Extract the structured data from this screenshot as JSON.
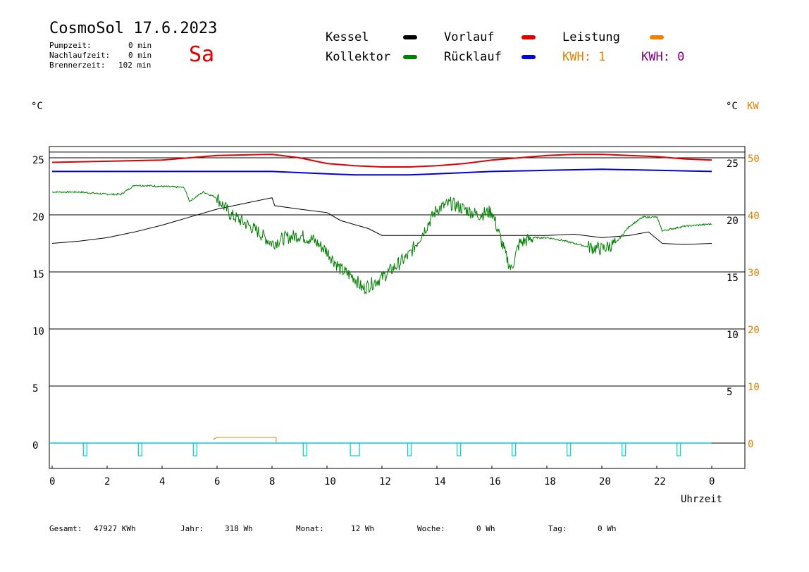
{
  "header": {
    "title": "CosmoSol 17.6.2023",
    "day": "Sa",
    "stats": [
      {
        "label": "Pumpzeit:",
        "value": "0 min"
      },
      {
        "label": "Nachlaufzeit:",
        "value": "0 min"
      },
      {
        "label": "Brennerzeit:",
        "value": "102 min"
      }
    ]
  },
  "legend": {
    "kessel": {
      "label": "Kessel",
      "color": "#000000"
    },
    "kollektor": {
      "label": "Kollektor",
      "color": "#008000"
    },
    "vorlauf": {
      "label": "Vorlauf",
      "color": "#e00000"
    },
    "ruecklauf": {
      "label": "Rücklauf",
      "color": "#0000e0"
    },
    "leistung": {
      "label": "Leistung",
      "color": "#f08000"
    },
    "kwh1": {
      "label": "KWH: 1",
      "color": "#e08000"
    },
    "kwh2": {
      "label": "KWH: 0",
      "color": "#800080"
    }
  },
  "axes": {
    "left_unit": "°C",
    "right_unit_c": "°C",
    "right_unit_kw": "KW",
    "xlabel": "Uhrzeit"
  },
  "footer": {
    "gesamt_label": "Gesamt:",
    "gesamt_value": "47927 KWh",
    "jahr_label": "Jahr:",
    "jahr_value": "318 Wh",
    "monat_label": "Monat:",
    "monat_value": "12 Wh",
    "woche_label": "Woche:",
    "woche_value": "0 Wh",
    "tag_label": "Tag:",
    "tag_value": "0 Wh"
  },
  "chart_data": {
    "type": "line",
    "xlim": [
      0,
      24
    ],
    "x_ticks": [
      "0",
      "2",
      "4",
      "6",
      "8",
      "10",
      "12",
      "14",
      "16",
      "18",
      "20",
      "22",
      "0"
    ],
    "ylim_left": [
      0,
      26
    ],
    "y_ticks_left": [
      "0",
      "5",
      "10",
      "15",
      "20",
      "25"
    ],
    "y_ticks_right_c": [
      "5",
      "10",
      "15",
      "20",
      "25"
    ],
    "y_ticks_right_kw": [
      "0",
      "10",
      "20",
      "30",
      "40",
      "50"
    ],
    "grid": true,
    "series": [
      {
        "name": "Vorlauf",
        "color": "#e00000",
        "x": [
          0,
          2,
          4,
          5,
          6,
          8,
          9,
          10,
          11,
          12,
          13,
          14,
          15,
          16,
          17,
          18,
          19,
          20,
          21,
          22,
          23,
          24
        ],
        "y": [
          24.6,
          24.7,
          24.8,
          25.0,
          25.2,
          25.3,
          25.0,
          24.5,
          24.3,
          24.2,
          24.2,
          24.3,
          24.5,
          24.8,
          25.0,
          25.2,
          25.3,
          25.3,
          25.2,
          25.1,
          24.9,
          24.8
        ]
      },
      {
        "name": "Rücklauf",
        "color": "#0000e0",
        "x": [
          0,
          2,
          4,
          6,
          8,
          10,
          11,
          12,
          13,
          14,
          16,
          18,
          20,
          22,
          24
        ],
        "y": [
          23.8,
          23.8,
          23.8,
          23.8,
          23.8,
          23.6,
          23.5,
          23.5,
          23.5,
          23.6,
          23.8,
          23.9,
          24.0,
          23.9,
          23.8
        ]
      },
      {
        "name": "Kessel",
        "color": "#000000",
        "x": [
          0,
          1,
          2,
          3,
          4,
          5,
          6,
          7,
          8,
          8.1,
          9,
          10,
          10.5,
          11.5,
          12,
          13,
          14,
          16,
          18,
          19,
          20,
          21,
          21.7,
          22.2,
          23,
          24
        ],
        "y": [
          17.5,
          17.7,
          18.0,
          18.5,
          19.1,
          19.8,
          20.5,
          21.0,
          21.5,
          20.8,
          20.5,
          20.2,
          19.5,
          18.8,
          18.2,
          18.2,
          18.2,
          18.2,
          18.2,
          18.3,
          18.0,
          18.2,
          18.5,
          17.5,
          17.4,
          17.5
        ]
      },
      {
        "name": "Kollektor",
        "color": "#008000",
        "x": [
          0,
          1,
          2,
          2.5,
          3,
          4,
          4.8,
          5,
          5.5,
          6,
          6.5,
          7,
          7.5,
          8,
          8.5,
          9,
          9.5,
          10,
          10.5,
          11,
          11.3,
          12,
          12.5,
          13,
          13.5,
          14,
          14.5,
          15,
          15.5,
          16,
          16.5,
          16.7,
          17,
          17.5,
          18,
          18.5,
          19,
          19.5,
          20,
          20.5,
          21,
          21.5,
          22,
          22.2,
          23,
          24
        ],
        "y": [
          22.0,
          22.0,
          21.8,
          21.8,
          22.6,
          22.5,
          22.4,
          21.2,
          22.0,
          21.5,
          20.0,
          19.3,
          18.5,
          17.5,
          18.0,
          18.2,
          17.8,
          16.8,
          15.2,
          14.5,
          13.5,
          14.5,
          15.5,
          16.5,
          18.5,
          20.5,
          21.0,
          20.5,
          20.0,
          20.3,
          16.5,
          15.2,
          17.5,
          18.0,
          18.0,
          17.8,
          17.5,
          17.2,
          17.0,
          17.5,
          19.0,
          19.8,
          19.8,
          18.6,
          19.0,
          19.2
        ]
      },
      {
        "name": "Leistung",
        "color": "#f08000",
        "x": [
          5.85,
          6.0,
          8.15,
          8.15
        ],
        "y": [
          0.3,
          0.5,
          0.5,
          0.0
        ]
      }
    ]
  }
}
